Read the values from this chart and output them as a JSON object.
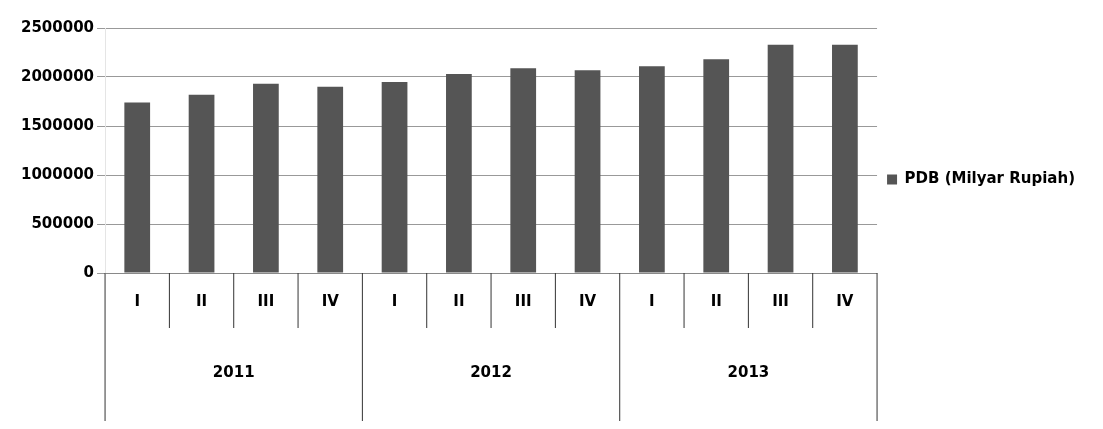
{
  "chart_data": {
    "type": "bar",
    "categories": [
      "I",
      "II",
      "III",
      "IV",
      "I",
      "II",
      "III",
      "IV",
      "I",
      "II",
      "III",
      "IV"
    ],
    "series": [
      {
        "name": "PDB (Milyar Rupiah)",
        "color": "#555555",
        "values": [
          1740000,
          1820000,
          1930000,
          1900000,
          1950000,
          2030000,
          2090000,
          2070000,
          2110000,
          2180000,
          2330000,
          2330000
        ]
      }
    ],
    "ylim": [
      0,
      2500000
    ],
    "yticks": [
      0,
      500000,
      1000000,
      1500000,
      2000000,
      2500000
    ],
    "annotations": [
      "2011",
      "2012",
      "2013"
    ],
    "grid": "y",
    "legend": "right"
  }
}
